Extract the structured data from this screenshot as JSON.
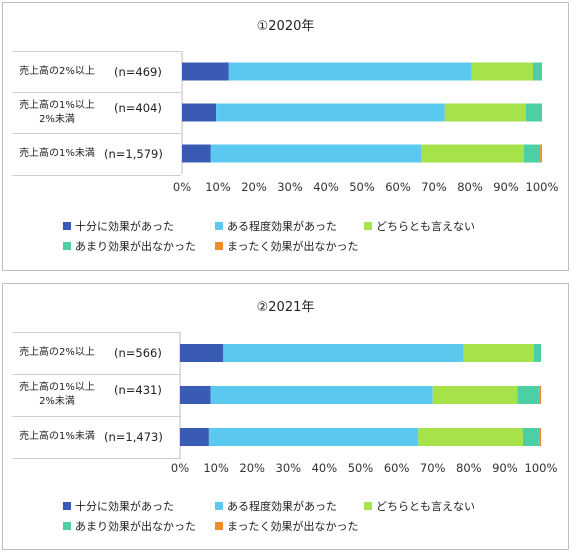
{
  "colors": [
    "#3A5BB3",
    "#5BC8F0",
    "#A6E24A",
    "#4DCFA6",
    "#F08A24"
  ],
  "legend": [
    "十分に効果があった",
    "ある程度効果があった",
    "どちらとも言えない",
    "あまり効果が出なかった",
    "まったく効果が出なかった"
  ],
  "chart_data": [
    {
      "type": "bar",
      "orientation": "horizontal-stacked-100",
      "title": "①2020年",
      "categories": [
        "売上高の2%以上",
        "売上高の1%以上2%未満",
        "売上高の1%未満"
      ],
      "category_lines": [
        [
          "売上高の2%以上"
        ],
        [
          "売上高の1%以上",
          "2%未満"
        ],
        [
          "売上高の1%未満"
        ]
      ],
      "n_labels": [
        "(n=469)",
        "(n=404)",
        "(n=1,579)"
      ],
      "series": [
        {
          "name": "十分に効果があった",
          "values": [
            13,
            9.5,
            8
          ]
        },
        {
          "name": "ある程度効果があった",
          "values": [
            67.5,
            63.5,
            58.5
          ]
        },
        {
          "name": "どちらとも言えない",
          "values": [
            17,
            22.5,
            28.5
          ]
        },
        {
          "name": "あまり効果が出なかった",
          "values": [
            2.5,
            4.5,
            4.5
          ]
        },
        {
          "name": "まったく効果が出なかった",
          "values": [
            0,
            0,
            0.5
          ]
        }
      ],
      "xlim": [
        0,
        100
      ],
      "ticks": [
        "0%",
        "10%",
        "20%",
        "30%",
        "40%",
        "50%",
        "60%",
        "70%",
        "80%",
        "90%",
        "100%"
      ]
    },
    {
      "type": "bar",
      "orientation": "horizontal-stacked-100",
      "title": "②2021年",
      "categories": [
        "売上高の2%以上",
        "売上高の1%以上2%未満",
        "売上高の1%未満"
      ],
      "category_lines": [
        [
          "売上高の2%以上"
        ],
        [
          "売上高の1%以上",
          "2%未満"
        ],
        [
          "売上高の1%未満"
        ]
      ],
      "n_labels": [
        "(n=566)",
        "(n=431)",
        "(n=1,473)"
      ],
      "series": [
        {
          "name": "十分に効果があった",
          "values": [
            12,
            8.5,
            8
          ]
        },
        {
          "name": "ある程度効果があった",
          "values": [
            66.5,
            61.5,
            58
          ]
        },
        {
          "name": "どちらとも言えない",
          "values": [
            19.5,
            23.5,
            29
          ]
        },
        {
          "name": "あまり効果が出なかった",
          "values": [
            2,
            6,
            4.5
          ]
        },
        {
          "name": "まったく効果が出なかった",
          "values": [
            0,
            0.5,
            0.5
          ]
        }
      ],
      "xlim": [
        0,
        100
      ],
      "ticks": [
        "0%",
        "10%",
        "20%",
        "30%",
        "40%",
        "50%",
        "60%",
        "70%",
        "80%",
        "90%",
        "100%"
      ]
    }
  ]
}
